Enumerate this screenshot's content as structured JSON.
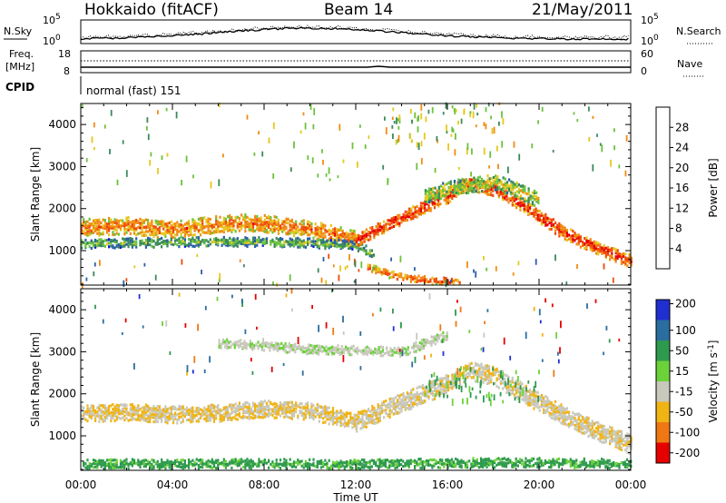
{
  "header": {
    "station": "Hokkaido (fitACF)",
    "beam": "Beam 14",
    "date": "21/May/2011"
  },
  "status_panels": {
    "nsky_label": "N.Sky",
    "nsearch_label": "N.Search",
    "noise_ticks_left": [
      "10^5",
      "10^0"
    ],
    "noise_ticks_right": [
      "10^5",
      "10^0"
    ],
    "freq_label_line1": "Freq.",
    "freq_label_line2": "[MHz]",
    "freq_ticks": [
      "18",
      "8"
    ],
    "nave_label": "Nave",
    "nave_ticks": [
      "60",
      "0"
    ],
    "cpid_label": "CPID",
    "cpid_value": "normal (fast) 151"
  },
  "chart_data": [
    {
      "type": "heatmap",
      "name": "power",
      "ylabel": "Slant Range [km]",
      "xlabel": "",
      "ylim": [
        180,
        4500
      ],
      "yticks": [
        1000,
        2000,
        3000,
        4000
      ],
      "colorbar_label": "Power [dB]",
      "colorbar_ticks": [
        4,
        8,
        12,
        16,
        20,
        24,
        28
      ],
      "colorbar_range": [
        0,
        32
      ],
      "colors": [
        "#1414e6",
        "#2a5ea8",
        "#3a8a5a",
        "#6cc23c",
        "#e6c81e",
        "#f08c14",
        "#f04a0a",
        "#e60000"
      ],
      "echo_bands": [
        {
          "t": [
            0,
            1,
            2,
            3,
            4,
            5,
            6,
            7,
            8,
            9,
            10,
            11,
            12
          ],
          "r": [
            1550,
            1560,
            1600,
            1520,
            1500,
            1560,
            1620,
            1660,
            1640,
            1560,
            1500,
            1400,
            1260
          ],
          "w": 180,
          "p": 24
        },
        {
          "t": [
            0,
            2,
            4,
            6,
            8,
            10,
            12,
            12.8
          ],
          "r": [
            1150,
            1180,
            1200,
            1210,
            1200,
            1180,
            1120,
            900
          ],
          "w": 90,
          "p": 14
        },
        {
          "t": [
            12,
            13,
            14,
            15,
            16,
            16.5,
            17,
            17.5,
            18,
            19,
            20,
            21,
            22,
            23,
            24
          ],
          "r": [
            1250,
            1520,
            1780,
            2060,
            2300,
            2520,
            2600,
            2520,
            2470,
            2180,
            1800,
            1460,
            1180,
            960,
            760
          ],
          "w": 150,
          "p": 28
        },
        {
          "t": [
            15,
            16,
            17,
            18,
            19,
            20
          ],
          "r": [
            2300,
            2500,
            2560,
            2640,
            2460,
            2200
          ],
          "w": 170,
          "p": 17
        },
        {
          "t": [
            12.5,
            13.5,
            15,
            16,
            16.5
          ],
          "r": [
            600,
            420,
            300,
            260,
            240
          ],
          "w": 70,
          "p": 26
        }
      ],
      "scatter_regions": [
        {
          "t": [
            0,
            24
          ],
          "r": [
            2600,
            4500
          ],
          "density": 0.035,
          "p": [
            10,
            22
          ]
        },
        {
          "t": [
            13.5,
            18.5
          ],
          "r": [
            3400,
            4500
          ],
          "density": 0.18,
          "p": [
            8,
            22
          ]
        },
        {
          "t": [
            0,
            24
          ],
          "r": [
            200,
            900
          ],
          "density": 0.05,
          "p": [
            4,
            28
          ]
        }
      ]
    },
    {
      "type": "heatmap",
      "name": "velocity",
      "ylabel": "Slant Range [km]",
      "xlabel": "Time UT",
      "ylim": [
        180,
        4500
      ],
      "yticks": [
        1000,
        2000,
        3000,
        4000
      ],
      "xticks": [
        "00:00",
        "04:00",
        "08:00",
        "12:00",
        "16:00",
        "20:00",
        "00:00"
      ],
      "xlim_hours": [
        0,
        24
      ],
      "colorbar_label": "Velocity [m s^-1]",
      "colorbar_ticks": [
        200,
        100,
        50,
        15,
        -15,
        -50,
        -100,
        -200
      ],
      "colors": [
        "#2030d0",
        "#2a6ea0",
        "#2e9a4e",
        "#6cd23a",
        "#c8c8bc",
        "#f0b414",
        "#f07814",
        "#e60000"
      ],
      "echo_bands": [
        {
          "t": [
            0,
            2,
            4,
            6,
            8,
            10,
            12
          ],
          "r": [
            1550,
            1580,
            1520,
            1560,
            1660,
            1600,
            1350
          ],
          "w": 200,
          "v": -15
        },
        {
          "t": [
            12,
            14,
            16,
            17,
            18,
            20,
            22,
            24
          ],
          "r": [
            1350,
            1800,
            2250,
            2550,
            2450,
            1800,
            1250,
            800
          ],
          "w": 220,
          "v": -10
        },
        {
          "t": [
            6,
            10,
            14,
            16
          ],
          "r": [
            3200,
            3050,
            3000,
            3400
          ],
          "w": 90,
          "v": 8
        },
        {
          "t": [
            0,
            4,
            8,
            12,
            16,
            20,
            24
          ],
          "r": [
            330,
            330,
            340,
            320,
            350,
            360,
            330
          ],
          "w": 90,
          "v": 40
        }
      ],
      "scatter_regions": [
        {
          "t": [
            0,
            24
          ],
          "r": [
            2500,
            4500
          ],
          "density": 0.03,
          "v": [
            -200,
            200
          ]
        },
        {
          "t": [
            15,
            20
          ],
          "r": [
            1800,
            2700
          ],
          "density": 0.25,
          "v": [
            20,
            60
          ]
        }
      ]
    }
  ]
}
